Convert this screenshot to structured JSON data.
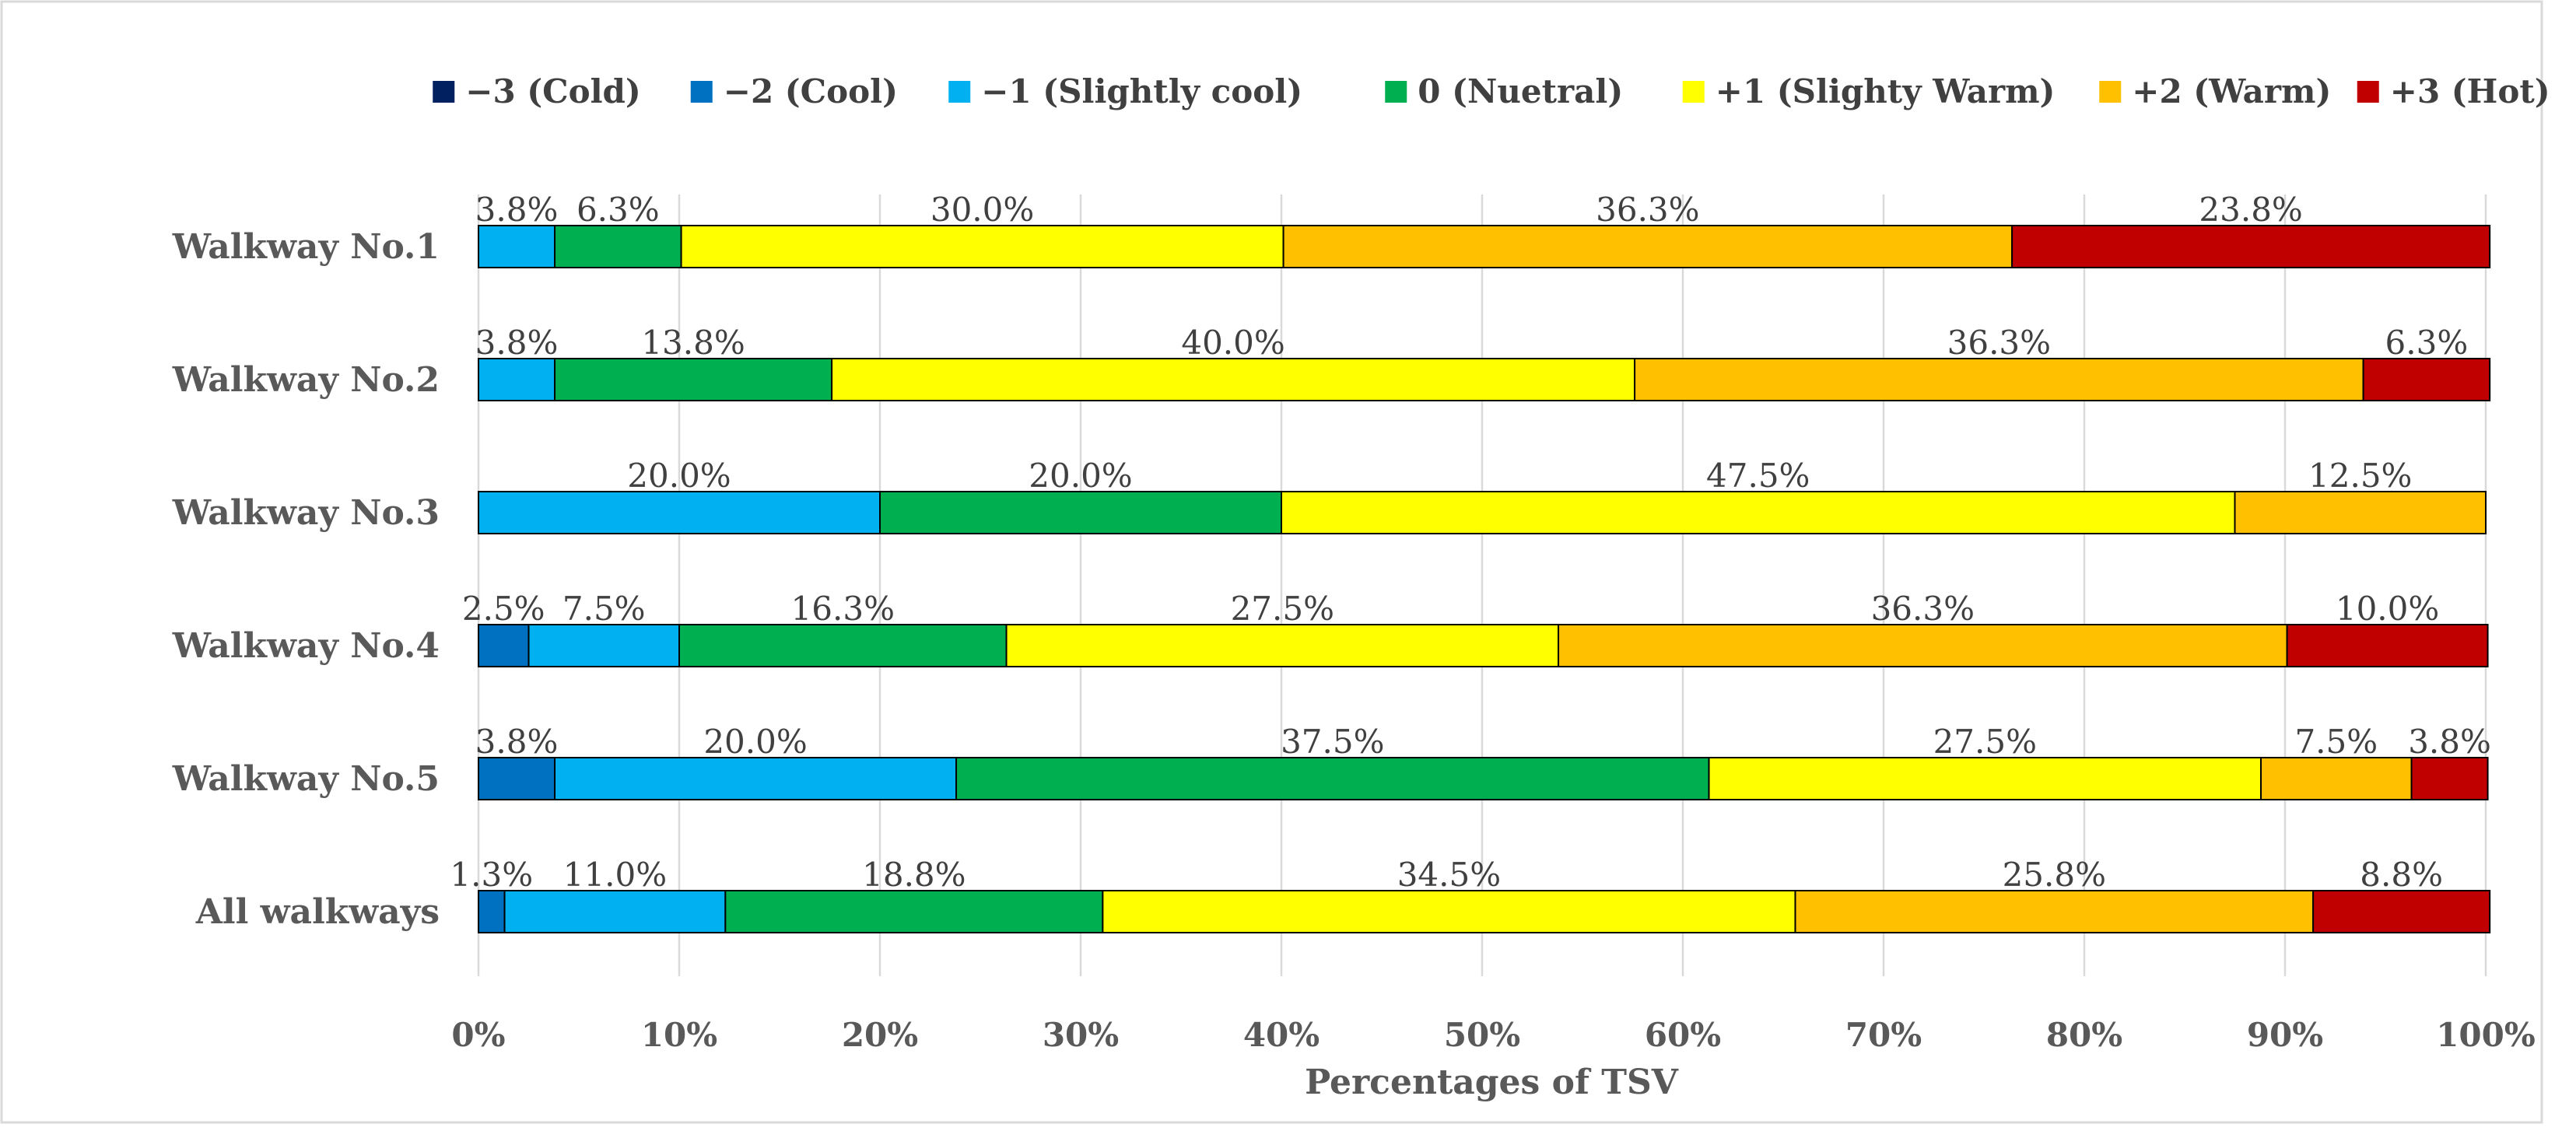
{
  "chart_data": {
    "type": "bar",
    "orientation": "horizontal",
    "stacked": true,
    "categories": [
      "Walkway No.1",
      "Walkway No.2",
      "Walkway No.3",
      "Walkway No.4",
      "Walkway No.5",
      "All walkways"
    ],
    "series": [
      {
        "name": "−3 (Cold)",
        "color": "#002060",
        "values": [
          0,
          0,
          0,
          0,
          0,
          0
        ]
      },
      {
        "name": "−2 (Cool)",
        "color": "#0070C0",
        "values": [
          0,
          0,
          0,
          2.5,
          3.8,
          1.3
        ]
      },
      {
        "name": "−1 (Slightly cool)",
        "color": "#00B0F0",
        "values": [
          3.8,
          3.8,
          20.0,
          7.5,
          20.0,
          11.0
        ]
      },
      {
        "name": "0 (Nuetral)",
        "color": "#00B050",
        "values": [
          6.3,
          13.8,
          20.0,
          16.3,
          37.5,
          18.8
        ]
      },
      {
        "name": "+1 (Slighty Warm)",
        "color": "#FFFF00",
        "values": [
          30.0,
          40.0,
          47.5,
          27.5,
          27.5,
          34.5
        ]
      },
      {
        "name": "+2 (Warm)",
        "color": "#FFC000",
        "values": [
          36.3,
          36.3,
          12.5,
          36.3,
          7.5,
          25.8
        ]
      },
      {
        "name": "+3 (Hot)",
        "color": "#C00000",
        "values": [
          23.8,
          6.3,
          0,
          10.0,
          3.8,
          8.8
        ]
      }
    ],
    "xlabel": "Percentages of TSV",
    "xlim": [
      0,
      100
    ],
    "xticks": [
      "0%",
      "10%",
      "20%",
      "30%",
      "40%",
      "50%",
      "60%",
      "70%",
      "80%",
      "90%",
      "100%"
    ],
    "value_suffix": "%",
    "legend_position": "top",
    "grid": "vertical"
  }
}
